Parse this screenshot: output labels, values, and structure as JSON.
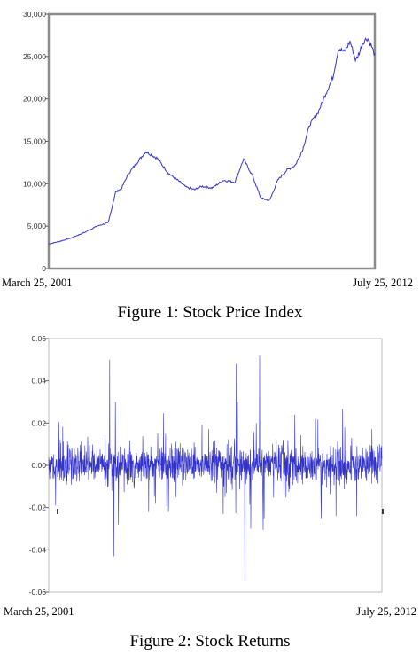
{
  "chart_data": [
    {
      "type": "line",
      "title": "",
      "caption": "Figure 1: Stock Price Index",
      "x_start_label": "March 25, 2001",
      "x_end_label": "July 25, 2012",
      "ylim": [
        0,
        30000
      ],
      "y_ticks": [
        "0",
        "5,000",
        "10,000",
        "15,000",
        "20,000",
        "25,000",
        "30,000"
      ],
      "y_tick_values": [
        0,
        5000,
        10000,
        15000,
        20000,
        25000,
        30000
      ],
      "grid": false,
      "legend": "none",
      "color": "#3333cc",
      "series": [
        {
          "x": [
            2001.23,
            2001.6,
            2002.0,
            2002.5,
            2002.9,
            2003.3,
            2003.55,
            2003.75,
            2004.0,
            2004.3,
            2004.6,
            2005.0,
            2005.4,
            2005.75,
            2006.0,
            2006.3,
            2006.55,
            2006.9,
            2007.3,
            2007.7,
            2008.0,
            2008.3,
            2008.6,
            2008.9,
            2009.2,
            2009.5,
            2009.8,
            2010.05,
            2010.3,
            2010.6,
            2010.9,
            2011.1,
            2011.3,
            2011.5,
            2011.7,
            2011.9,
            2012.0,
            2012.15,
            2012.3,
            2012.45,
            2012.56
          ],
          "y": [
            2900,
            3200,
            3600,
            4300,
            5000,
            5400,
            9000,
            9400,
            11200,
            12500,
            13800,
            13000,
            11200,
            10300,
            9600,
            9300,
            9700,
            9500,
            10400,
            10200,
            12900,
            11000,
            8300,
            8000,
            10500,
            11600,
            12200,
            14000,
            17000,
            18500,
            21000,
            22500,
            26000,
            25500,
            26800,
            24500,
            25300,
            26700,
            27200,
            26200,
            25100
          ]
        }
      ]
    },
    {
      "type": "line",
      "title": "",
      "caption": "Figure 2: Stock Returns",
      "x_start_label": "March 25, 2001",
      "x_end_label": "July 25, 2012",
      "ylim": [
        -0.06,
        0.06
      ],
      "y_ticks": [
        "-0.06",
        "-0.04",
        "-0.02",
        "0.00",
        "0.02",
        "0.04",
        "0.06"
      ],
      "y_tick_values": [
        -0.06,
        -0.04,
        -0.02,
        0.0,
        0.02,
        0.04,
        0.06
      ],
      "grid": false,
      "legend": "none",
      "color": "#3333cc",
      "noise_level": 0.003,
      "spikes": [
        {
          "x": 2003.3,
          "y": 0.05
        },
        {
          "x": 2003.45,
          "y": -0.043
        },
        {
          "x": 2003.5,
          "y": 0.03
        },
        {
          "x": 2003.6,
          "y": -0.028
        },
        {
          "x": 2005.2,
          "y": 0.015
        },
        {
          "x": 2005.3,
          "y": -0.022
        },
        {
          "x": 2007.6,
          "y": 0.048
        },
        {
          "x": 2007.65,
          "y": 0.03
        },
        {
          "x": 2007.9,
          "y": -0.055
        },
        {
          "x": 2008.1,
          "y": -0.03
        },
        {
          "x": 2008.4,
          "y": 0.052
        },
        {
          "x": 2008.55,
          "y": -0.025
        },
        {
          "x": 2009.6,
          "y": 0.024
        },
        {
          "x": 2010.3,
          "y": 0.022
        },
        {
          "x": 2010.5,
          "y": -0.025
        },
        {
          "x": 2011.0,
          "y": -0.024
        },
        {
          "x": 2011.3,
          "y": 0.018
        },
        {
          "x": 2011.7,
          "y": -0.024
        }
      ]
    }
  ]
}
